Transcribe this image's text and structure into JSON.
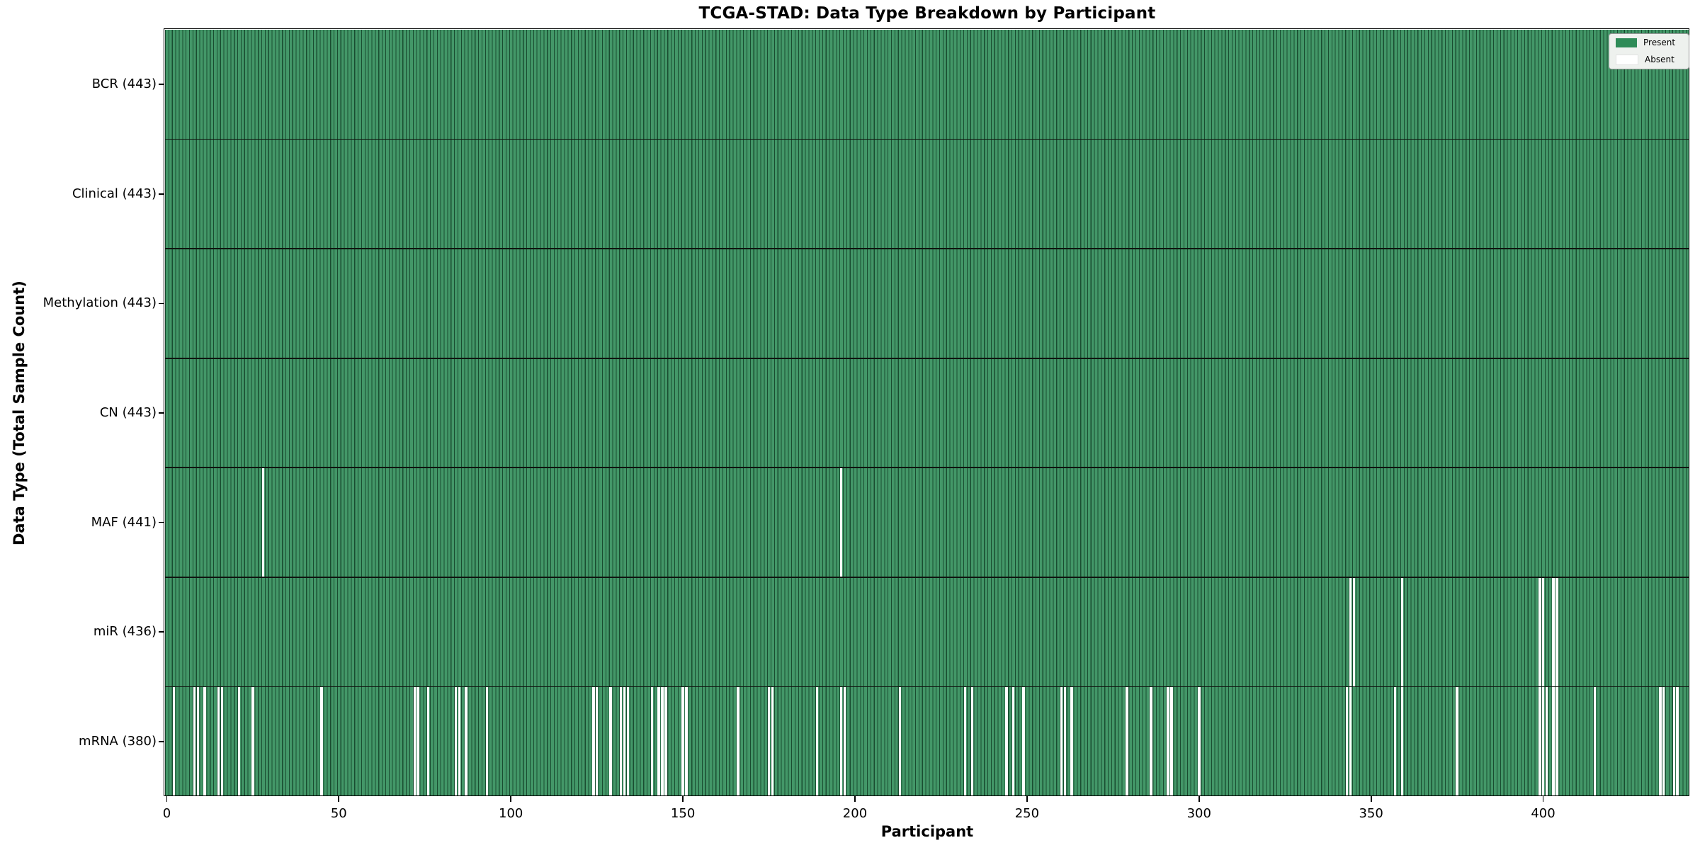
{
  "figure": {
    "title": "TCGA-STAD: Data Type Breakdown by Participant",
    "xlabel": "Participant",
    "ylabel": "Data Type (Total Sample Count)"
  },
  "legend": {
    "present_label": "Present",
    "absent_label": "Absent",
    "present_color": "#2e8b57",
    "absent_color": "#ffffff"
  },
  "chart_data": {
    "type": "heatmap",
    "title": "TCGA-STAD: Data Type Breakdown by Participant",
    "xlabel": "Participant",
    "ylabel": "Data Type (Total Sample Count)",
    "legend_position": "upper right",
    "legend_entries": [
      {
        "label": "Present",
        "color": "#2e8b57"
      },
      {
        "label": "Absent",
        "color": "#ffffff"
      }
    ],
    "colors": {
      "present": "#2e8b57",
      "absent": "#ffffff",
      "cell_edge": "rgba(0,0,0,0.45)",
      "row_separator": "#101510"
    },
    "n_participants": 443,
    "x_ticks": [
      0,
      50,
      100,
      150,
      200,
      250,
      300,
      350,
      400
    ],
    "x_range_note": "participant index 0 to 443",
    "rows": [
      {
        "label": "BCR",
        "total": 443,
        "tick_label": "BCR (443)",
        "absent": []
      },
      {
        "label": "Clinical",
        "total": 443,
        "tick_label": "Clinical (443)",
        "absent": []
      },
      {
        "label": "Methylation",
        "total": 443,
        "tick_label": "Methylation (443)",
        "absent": []
      },
      {
        "label": "CN",
        "total": 443,
        "tick_label": "CN (443)",
        "absent": []
      },
      {
        "label": "MAF",
        "total": 441,
        "tick_label": "MAF (441)",
        "absent": [
          28,
          196
        ]
      },
      {
        "label": "miR",
        "total": 436,
        "tick_label": "miR (436)",
        "absent": [
          344,
          345,
          359,
          399,
          400,
          403,
          404
        ]
      },
      {
        "label": "mRNA",
        "total": 380,
        "tick_label": "mRNA (380)",
        "absent": [
          2,
          8,
          9,
          11,
          15,
          16,
          21,
          25,
          45,
          72,
          73,
          76,
          84,
          85,
          87,
          93,
          124,
          125,
          129,
          132,
          133,
          134,
          141,
          143,
          144,
          145,
          150,
          151,
          166,
          175,
          176,
          189,
          196,
          197,
          213,
          232,
          234,
          244,
          246,
          249,
          260,
          261,
          263,
          279,
          286,
          291,
          292,
          300,
          343,
          344,
          357,
          359,
          375,
          399,
          400,
          401,
          403,
          404,
          415,
          434,
          435,
          438,
          439
        ]
      }
    ]
  }
}
